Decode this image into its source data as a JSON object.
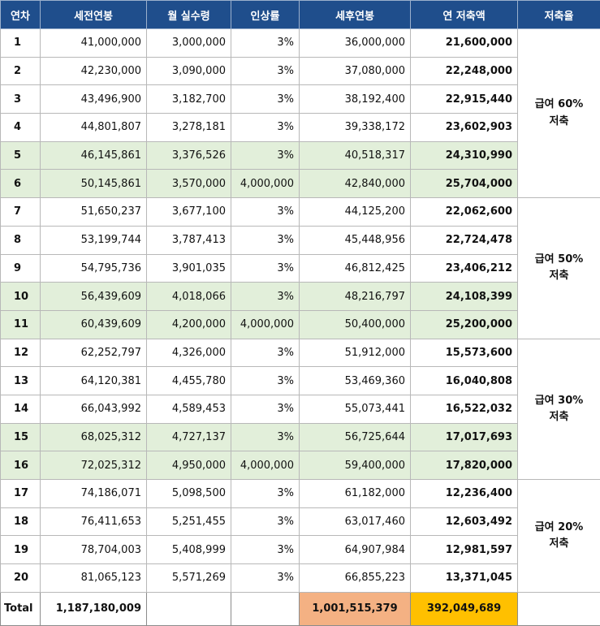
{
  "headers": [
    "연차",
    "세전연봉",
    "월 실수령",
    "인상률",
    "세후연봉",
    "연 저축액",
    "저축율"
  ],
  "rows": [
    {
      "year": "1",
      "pretax": "41,000,000",
      "monthly": "3,000,000",
      "raise": "3%",
      "aftertax": "36,000,000",
      "saving": "21,600,000",
      "highlight": false
    },
    {
      "year": "2",
      "pretax": "42,230,000",
      "monthly": "3,090,000",
      "raise": "3%",
      "aftertax": "37,080,000",
      "saving": "22,248,000",
      "highlight": false
    },
    {
      "year": "3",
      "pretax": "43,496,900",
      "monthly": "3,182,700",
      "raise": "3%",
      "aftertax": "38,192,400",
      "saving": "22,915,440",
      "highlight": false
    },
    {
      "year": "4",
      "pretax": "44,801,807",
      "monthly": "3,278,181",
      "raise": "3%",
      "aftertax": "39,338,172",
      "saving": "23,602,903",
      "highlight": false
    },
    {
      "year": "5",
      "pretax": "46,145,861",
      "monthly": "3,376,526",
      "raise": "3%",
      "aftertax": "40,518,317",
      "saving": "24,310,990",
      "highlight": true
    },
    {
      "year": "6",
      "pretax": "50,145,861",
      "monthly": "3,570,000",
      "raise": "4,000,000",
      "aftertax": "42,840,000",
      "saving": "25,704,000",
      "highlight": true
    },
    {
      "year": "7",
      "pretax": "51,650,237",
      "monthly": "3,677,100",
      "raise": "3%",
      "aftertax": "44,125,200",
      "saving": "22,062,600",
      "highlight": false
    },
    {
      "year": "8",
      "pretax": "53,199,744",
      "monthly": "3,787,413",
      "raise": "3%",
      "aftertax": "45,448,956",
      "saving": "22,724,478",
      "highlight": false
    },
    {
      "year": "9",
      "pretax": "54,795,736",
      "monthly": "3,901,035",
      "raise": "3%",
      "aftertax": "46,812,425",
      "saving": "23,406,212",
      "highlight": false
    },
    {
      "year": "10",
      "pretax": "56,439,609",
      "monthly": "4,018,066",
      "raise": "3%",
      "aftertax": "48,216,797",
      "saving": "24,108,399",
      "highlight": true
    },
    {
      "year": "11",
      "pretax": "60,439,609",
      "monthly": "4,200,000",
      "raise": "4,000,000",
      "aftertax": "50,400,000",
      "saving": "25,200,000",
      "highlight": true
    },
    {
      "year": "12",
      "pretax": "62,252,797",
      "monthly": "4,326,000",
      "raise": "3%",
      "aftertax": "51,912,000",
      "saving": "15,573,600",
      "highlight": false
    },
    {
      "year": "13",
      "pretax": "64,120,381",
      "monthly": "4,455,780",
      "raise": "3%",
      "aftertax": "53,469,360",
      "saving": "16,040,808",
      "highlight": false
    },
    {
      "year": "14",
      "pretax": "66,043,992",
      "monthly": "4,589,453",
      "raise": "3%",
      "aftertax": "55,073,441",
      "saving": "16,522,032",
      "highlight": false
    },
    {
      "year": "15",
      "pretax": "68,025,312",
      "monthly": "4,727,137",
      "raise": "3%",
      "aftertax": "56,725,644",
      "saving": "17,017,693",
      "highlight": true
    },
    {
      "year": "16",
      "pretax": "72,025,312",
      "monthly": "4,950,000",
      "raise": "4,000,000",
      "aftertax": "59,400,000",
      "saving": "17,820,000",
      "highlight": true
    },
    {
      "year": "17",
      "pretax": "74,186,071",
      "monthly": "5,098,500",
      "raise": "3%",
      "aftertax": "61,182,000",
      "saving": "12,236,400",
      "highlight": false
    },
    {
      "year": "18",
      "pretax": "76,411,653",
      "monthly": "5,251,455",
      "raise": "3%",
      "aftertax": "63,017,460",
      "saving": "12,603,492",
      "highlight": false
    },
    {
      "year": "19",
      "pretax": "78,704,003",
      "monthly": "5,408,999",
      "raise": "3%",
      "aftertax": "64,907,984",
      "saving": "12,981,597",
      "highlight": false
    },
    {
      "year": "20",
      "pretax": "81,065,123",
      "monthly": "5,571,269",
      "raise": "3%",
      "aftertax": "66,855,223",
      "saving": "13,371,045",
      "highlight": false
    }
  ],
  "savings_groups": [
    {
      "line1": "급여 60%",
      "line2": "저축",
      "rowspan": 6
    },
    {
      "line1": "급여 50%",
      "line2": "저축",
      "rowspan": 5
    },
    {
      "line1": "급여 30%",
      "line2": "저축",
      "rowspan": 5
    },
    {
      "line1": "급여 20%",
      "line2": "저축",
      "rowspan": 4
    }
  ],
  "total": {
    "label": "Total",
    "pretax": "1,187,180,009",
    "aftertax": "1,001,515,379",
    "saving": "392,049,689"
  },
  "colors": {
    "header": "#1f4e8c",
    "highlight": "#e2efda",
    "total_aftertax": "#f4b183",
    "total_saving": "#ffc000"
  }
}
